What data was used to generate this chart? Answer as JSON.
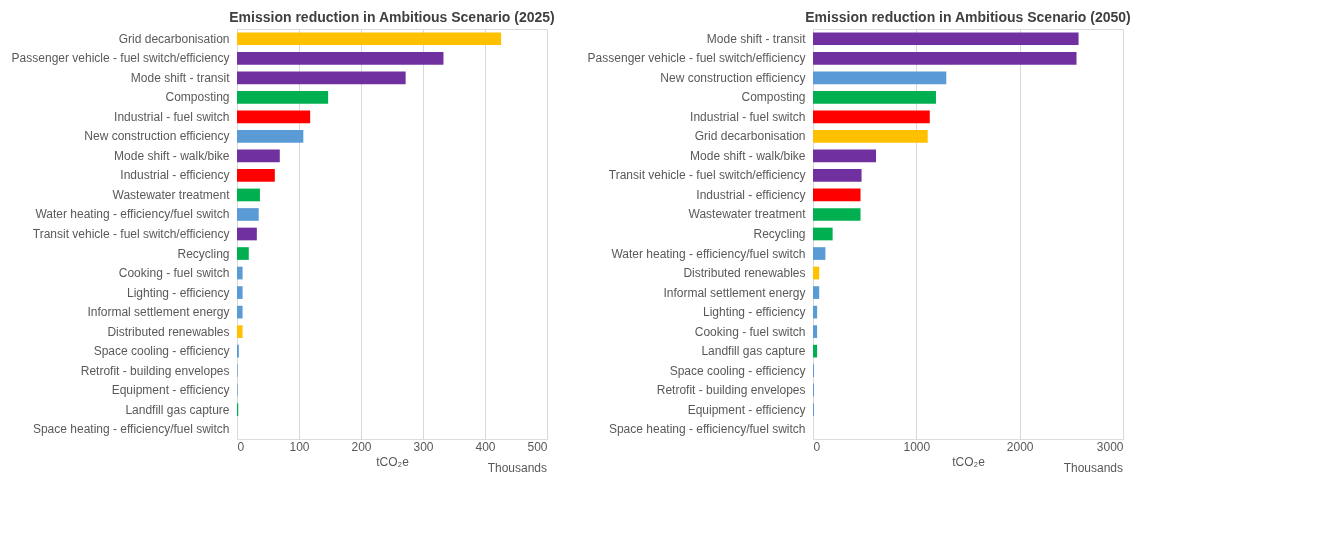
{
  "chart_data": [
    {
      "type": "bar",
      "orientation": "horizontal",
      "title": "Emission reduction in Ambitious Scenario (2025)",
      "xlabel": "tCO₂e",
      "annotations": [
        "Thousands"
      ],
      "categories": [
        "Grid decarbonisation",
        "Passenger vehicle - fuel switch/efficiency",
        "Mode shift - transit",
        "Composting",
        "Industrial - fuel switch",
        "New construction efficiency",
        "Mode shift - walk/bike",
        "Industrial - efficiency",
        "Wastewater treatment",
        "Water heating - efficiency/fuel switch",
        "Transit vehicle - fuel switch/efficiency",
        "Recycling",
        "Cooking - fuel switch",
        "Lighting - efficiency",
        "Informal settlement energy",
        "Distributed renewables",
        "Space cooling - efficiency",
        "Retrofit - building envelopes",
        "Equipment - efficiency",
        "Landfill gas capture",
        "Space heating - efficiency/fuel switch"
      ],
      "values": [
        426,
        333,
        272,
        147,
        118,
        107,
        69,
        61,
        37,
        35,
        32,
        19,
        9,
        9,
        9,
        9,
        3,
        1,
        1,
        2,
        0
      ],
      "colors": [
        "#ffc000",
        "#7030a0",
        "#7030a0",
        "#00b050",
        "#ff0000",
        "#5b9bd5",
        "#7030a0",
        "#ff0000",
        "#00b050",
        "#5b9bd5",
        "#7030a0",
        "#00b050",
        "#5b9bd5",
        "#5b9bd5",
        "#5b9bd5",
        "#ffc000",
        "#5b9bd5",
        "#5b9bd5",
        "#5b9bd5",
        "#00b050",
        "#5b9bd5"
      ],
      "xlim": [
        0,
        500
      ],
      "xticks": [
        0,
        100,
        200,
        300,
        400,
        500
      ],
      "grid": "x"
    },
    {
      "type": "bar",
      "orientation": "horizontal",
      "title": "Emission reduction in Ambitious Scenario (2050)",
      "xlabel": "tCO₂e",
      "annotations": [
        "Thousands"
      ],
      "categories": [
        "Mode shift - transit",
        "Passenger vehicle - fuel switch/efficiency",
        "New construction efficiency",
        "Composting",
        "Industrial - fuel switch",
        "Grid decarbonisation",
        "Mode shift - walk/bike",
        "Transit vehicle - fuel switch/efficiency",
        "Industrial - efficiency",
        "Wastewater treatment",
        "Recycling",
        "Water heating - efficiency/fuel switch",
        "Distributed renewables",
        "Informal settlement energy",
        "Lighting - efficiency",
        "Cooking - fuel switch",
        "Landfill gas capture",
        "Space cooling - efficiency",
        "Retrofit - building envelopes",
        "Equipment - efficiency",
        "Space heating - efficiency/fuel switch"
      ],
      "values": [
        2570,
        2550,
        1290,
        1190,
        1130,
        1110,
        610,
        470,
        460,
        460,
        190,
        120,
        60,
        60,
        40,
        40,
        40,
        10,
        10,
        10,
        0
      ],
      "colors": [
        "#7030a0",
        "#7030a0",
        "#5b9bd5",
        "#00b050",
        "#ff0000",
        "#ffc000",
        "#7030a0",
        "#7030a0",
        "#ff0000",
        "#00b050",
        "#00b050",
        "#5b9bd5",
        "#ffc000",
        "#5b9bd5",
        "#5b9bd5",
        "#5b9bd5",
        "#00b050",
        "#5b9bd5",
        "#5b9bd5",
        "#5b9bd5",
        "#5b9bd5"
      ],
      "xlim": [
        0,
        3000
      ],
      "xticks": [
        0,
        1000,
        2000,
        3000
      ],
      "grid": "x"
    }
  ]
}
